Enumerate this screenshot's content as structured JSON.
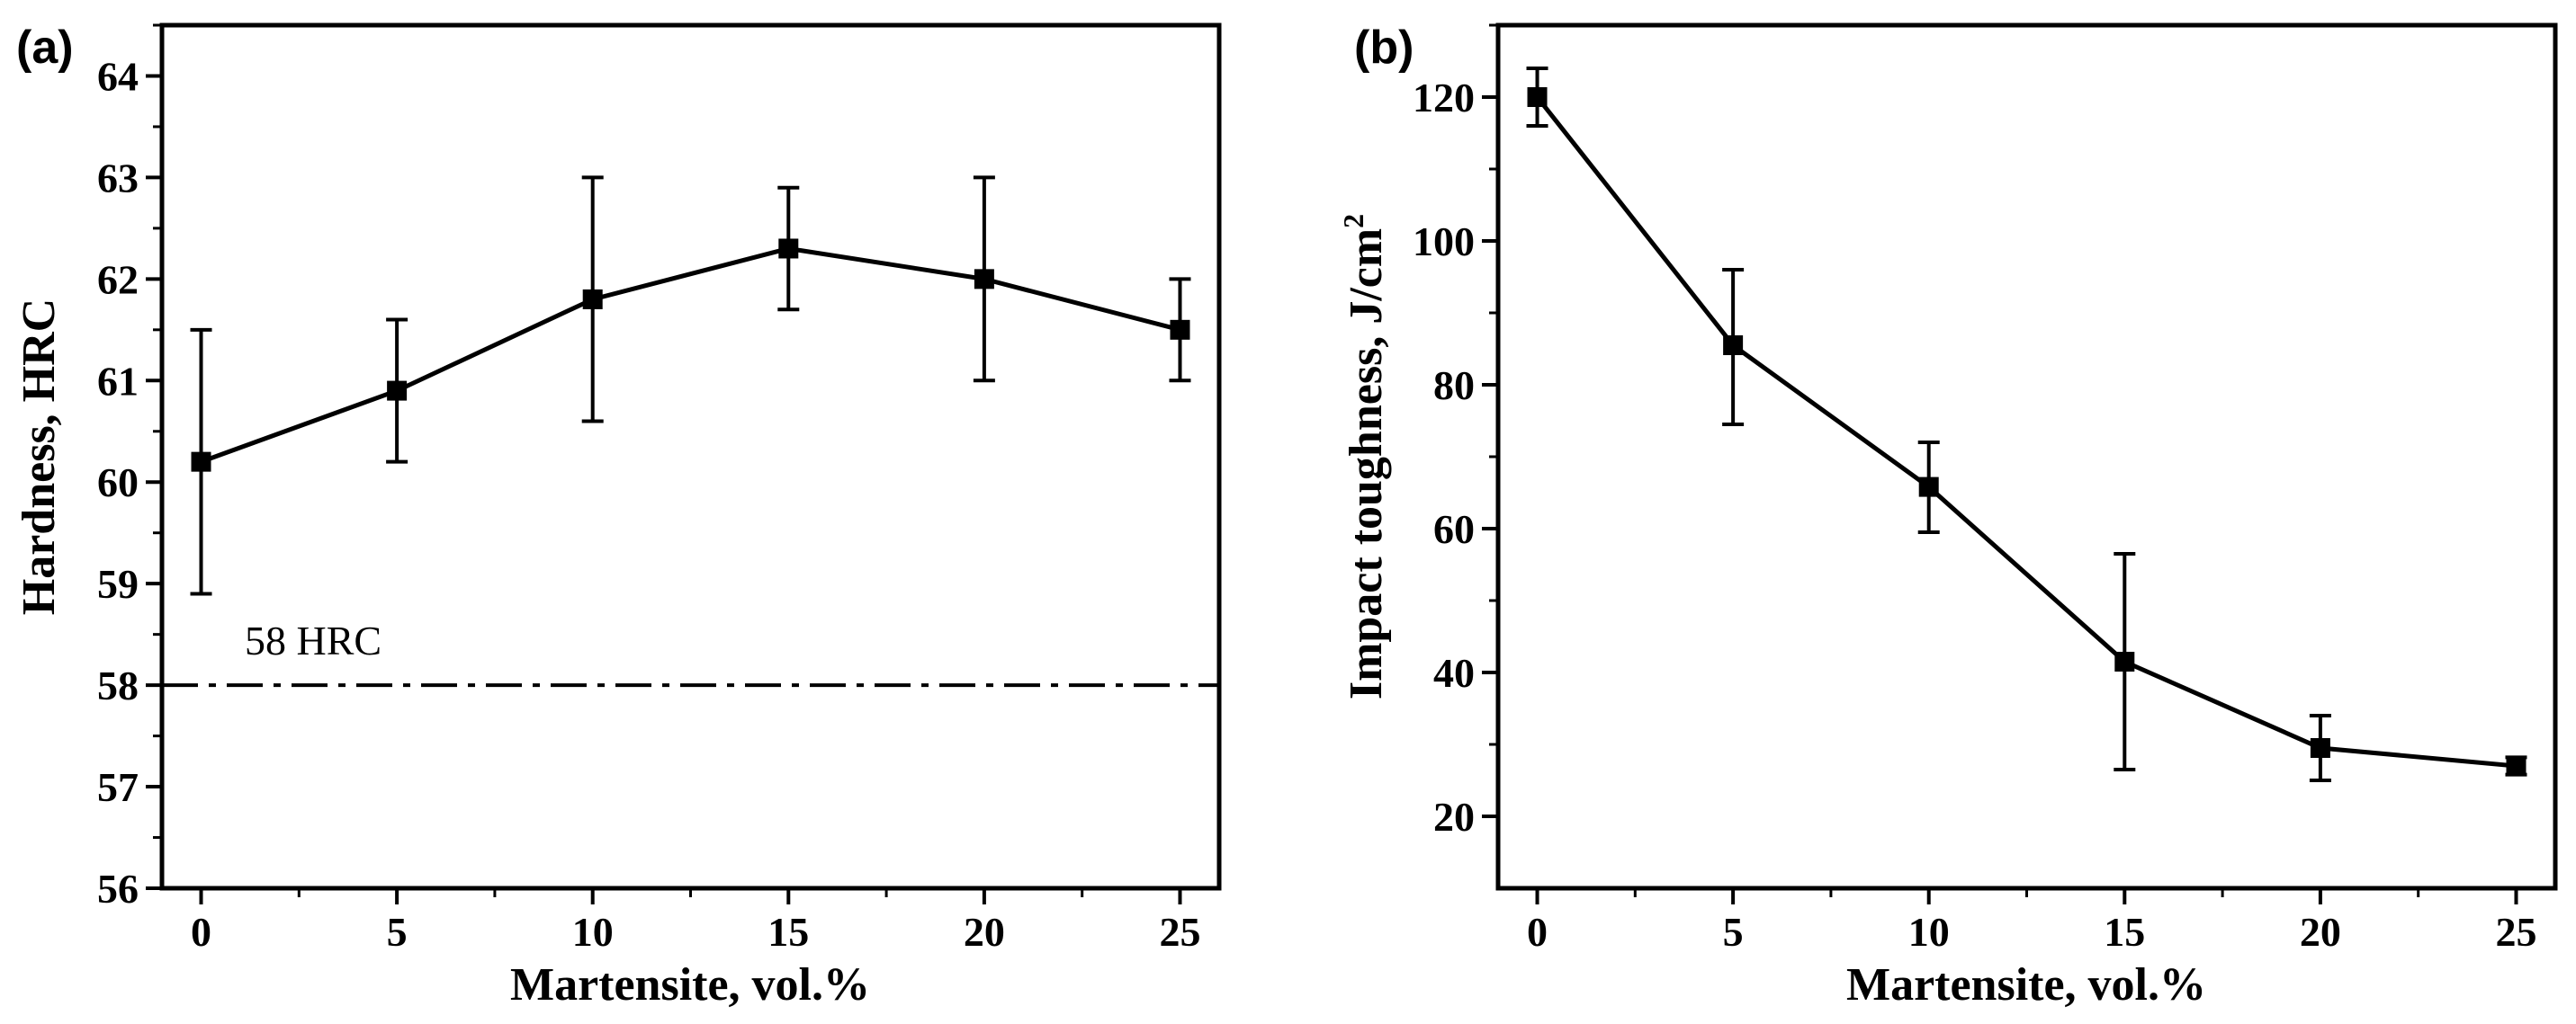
{
  "chart_data": [
    {
      "panel_label": "(a)",
      "type": "line",
      "xlabel": "Martensite, vol.%",
      "ylabel": "Hardness, HRC",
      "xlim": [
        -1,
        26
      ],
      "ylim": [
        56,
        64.5
      ],
      "xticks": [
        0,
        5,
        10,
        15,
        20,
        25
      ],
      "yticks": [
        56,
        57,
        58,
        59,
        60,
        61,
        62,
        63,
        64
      ],
      "x": [
        0,
        5,
        10,
        15,
        20,
        25
      ],
      "series": [
        {
          "name": "Hardness",
          "marker": "square",
          "values": [
            60.2,
            60.9,
            61.8,
            62.3,
            62.0,
            61.5
          ],
          "err_low": [
            58.9,
            60.2,
            60.6,
            61.7,
            61.0,
            61.0
          ],
          "err_high": [
            61.5,
            61.6,
            63.0,
            62.9,
            63.0,
            62.0
          ]
        }
      ],
      "reference_line": {
        "y": 58,
        "label": "58 HRC",
        "style": "dash-dot"
      }
    },
    {
      "panel_label": "(b)",
      "type": "line",
      "xlabel": "Martensite, vol.%",
      "ylabel": "Impact toughness, J/cm",
      "ylabel_superscript": "2",
      "xlim": [
        -1,
        26
      ],
      "ylim": [
        10,
        130
      ],
      "xticks": [
        0,
        5,
        10,
        15,
        20,
        25
      ],
      "yticks": [
        20,
        40,
        60,
        80,
        100,
        120
      ],
      "x": [
        0,
        5,
        10,
        15,
        20,
        25
      ],
      "series": [
        {
          "name": "Impact toughness",
          "marker": "square",
          "values": [
            120,
            85.5,
            65.8,
            41.5,
            29.5,
            27
          ],
          "err_low": [
            116,
            74.5,
            59.5,
            26.5,
            25,
            25.8
          ],
          "err_high": [
            124,
            96,
            72,
            56.5,
            34,
            28.2
          ]
        }
      ]
    }
  ]
}
